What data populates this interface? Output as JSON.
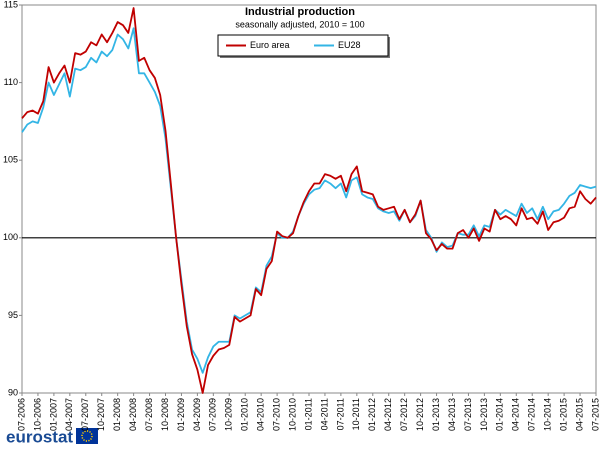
{
  "chart_data": {
    "type": "line",
    "title": "Industrial production",
    "subtitle": "seasonally adjusted, 2010 = 100",
    "categories": [
      "07-2006",
      null,
      null,
      "10-2006",
      null,
      null,
      "01-2007",
      null,
      null,
      "04-2007",
      null,
      null,
      "07-2007",
      null,
      null,
      "10-2007",
      null,
      null,
      "01-2008",
      null,
      null,
      "04-2008",
      null,
      null,
      "07-2008",
      null,
      null,
      "10-2008",
      null,
      null,
      "01-2009",
      null,
      null,
      "04-2009",
      null,
      null,
      "07-2009",
      null,
      null,
      "10-2009",
      null,
      null,
      "01-2010",
      null,
      null,
      "04-2010",
      null,
      null,
      "07-2010",
      null,
      null,
      "10-2010",
      null,
      null,
      "01-2011",
      null,
      null,
      "04-2011",
      null,
      null,
      "07-2011",
      null,
      null,
      "10-2011",
      null,
      null,
      "01-2012",
      null,
      null,
      "04-2012",
      null,
      null,
      "07-2012",
      null,
      null,
      "10-2012",
      null,
      null,
      "01-2013",
      null,
      null,
      "04-2013",
      null,
      null,
      "07-2013",
      null,
      null,
      "10-2013",
      null,
      null,
      "01-2014",
      null,
      null,
      "04-2014",
      null,
      null,
      "07-2014",
      null,
      null,
      "10-2014",
      null,
      null,
      "01-2015",
      null,
      null,
      "04-2015",
      null,
      null,
      "07-2015"
    ],
    "series": [
      {
        "name": "Euro area",
        "color": "#c00000",
        "values": [
          107.7,
          108.1,
          108.2,
          108.0,
          108.8,
          111.0,
          110.0,
          110.6,
          111.1,
          110.0,
          111.9,
          111.8,
          112.0,
          112.6,
          112.4,
          113.1,
          112.6,
          113.2,
          113.9,
          113.7,
          113.2,
          114.8,
          111.4,
          111.6,
          110.8,
          110.3,
          109.2,
          106.9,
          103.5,
          100.0,
          97.0,
          94.3,
          92.5,
          91.5,
          90.0,
          91.8,
          92.4,
          92.8,
          92.9,
          93.1,
          94.9,
          94.6,
          94.8,
          95.0,
          96.7,
          96.3,
          98.0,
          98.5,
          100.4,
          100.1,
          100.0,
          100.3,
          101.4,
          102.3,
          103.0,
          103.5,
          103.5,
          104.1,
          104.0,
          103.8,
          104.0,
          103.0,
          104.1,
          104.6,
          103.0,
          102.9,
          102.8,
          102.0,
          101.8,
          101.9,
          102.0,
          101.2,
          101.8,
          101.0,
          101.5,
          102.4,
          100.3,
          99.9,
          99.2,
          99.6,
          99.3,
          99.3,
          100.3,
          100.5,
          100.0,
          100.6,
          99.8,
          100.6,
          100.4,
          101.8,
          101.2,
          101.4,
          101.2,
          100.8,
          101.9,
          101.2,
          101.3,
          100.9,
          101.7,
          100.5,
          101.0,
          101.1,
          101.3,
          101.9,
          102.0,
          103.0,
          102.5,
          102.2,
          102.6
        ]
      },
      {
        "name": "EU28",
        "color": "#33b5e5",
        "values": [
          106.8,
          107.3,
          107.5,
          107.4,
          108.4,
          110.0,
          109.2,
          109.9,
          110.6,
          109.1,
          110.9,
          110.8,
          111.0,
          111.6,
          111.3,
          112.0,
          111.7,
          112.1,
          113.1,
          112.8,
          112.2,
          113.5,
          110.6,
          110.6,
          110.0,
          109.4,
          108.5,
          106.4,
          103.2,
          100.0,
          97.3,
          94.6,
          92.8,
          92.2,
          91.3,
          92.3,
          93.0,
          93.3,
          93.3,
          93.3,
          95.0,
          94.8,
          95.0,
          95.2,
          96.8,
          96.5,
          98.2,
          98.8,
          100.3,
          100.0,
          100.0,
          100.4,
          101.4,
          102.2,
          102.8,
          103.1,
          103.2,
          103.7,
          103.5,
          103.2,
          103.5,
          102.6,
          103.7,
          103.9,
          102.8,
          102.6,
          102.5,
          101.9,
          101.7,
          101.6,
          101.7,
          101.1,
          101.8,
          101.0,
          101.4,
          102.4,
          100.5,
          100.0,
          99.1,
          99.7,
          99.4,
          99.5,
          100.3,
          100.2,
          100.2,
          100.8,
          100.1,
          100.8,
          100.7,
          101.8,
          101.5,
          101.8,
          101.6,
          101.4,
          102.2,
          101.6,
          101.9,
          101.2,
          102.0,
          101.2,
          101.7,
          101.8,
          102.2,
          102.7,
          102.9,
          103.4,
          103.3,
          103.2,
          103.3
        ]
      }
    ],
    "ylim": [
      90,
      115
    ],
    "yticks": [
      90,
      95,
      100,
      105,
      110,
      115
    ],
    "reference_line": 100,
    "legend": "top"
  },
  "logo": "eurostat"
}
